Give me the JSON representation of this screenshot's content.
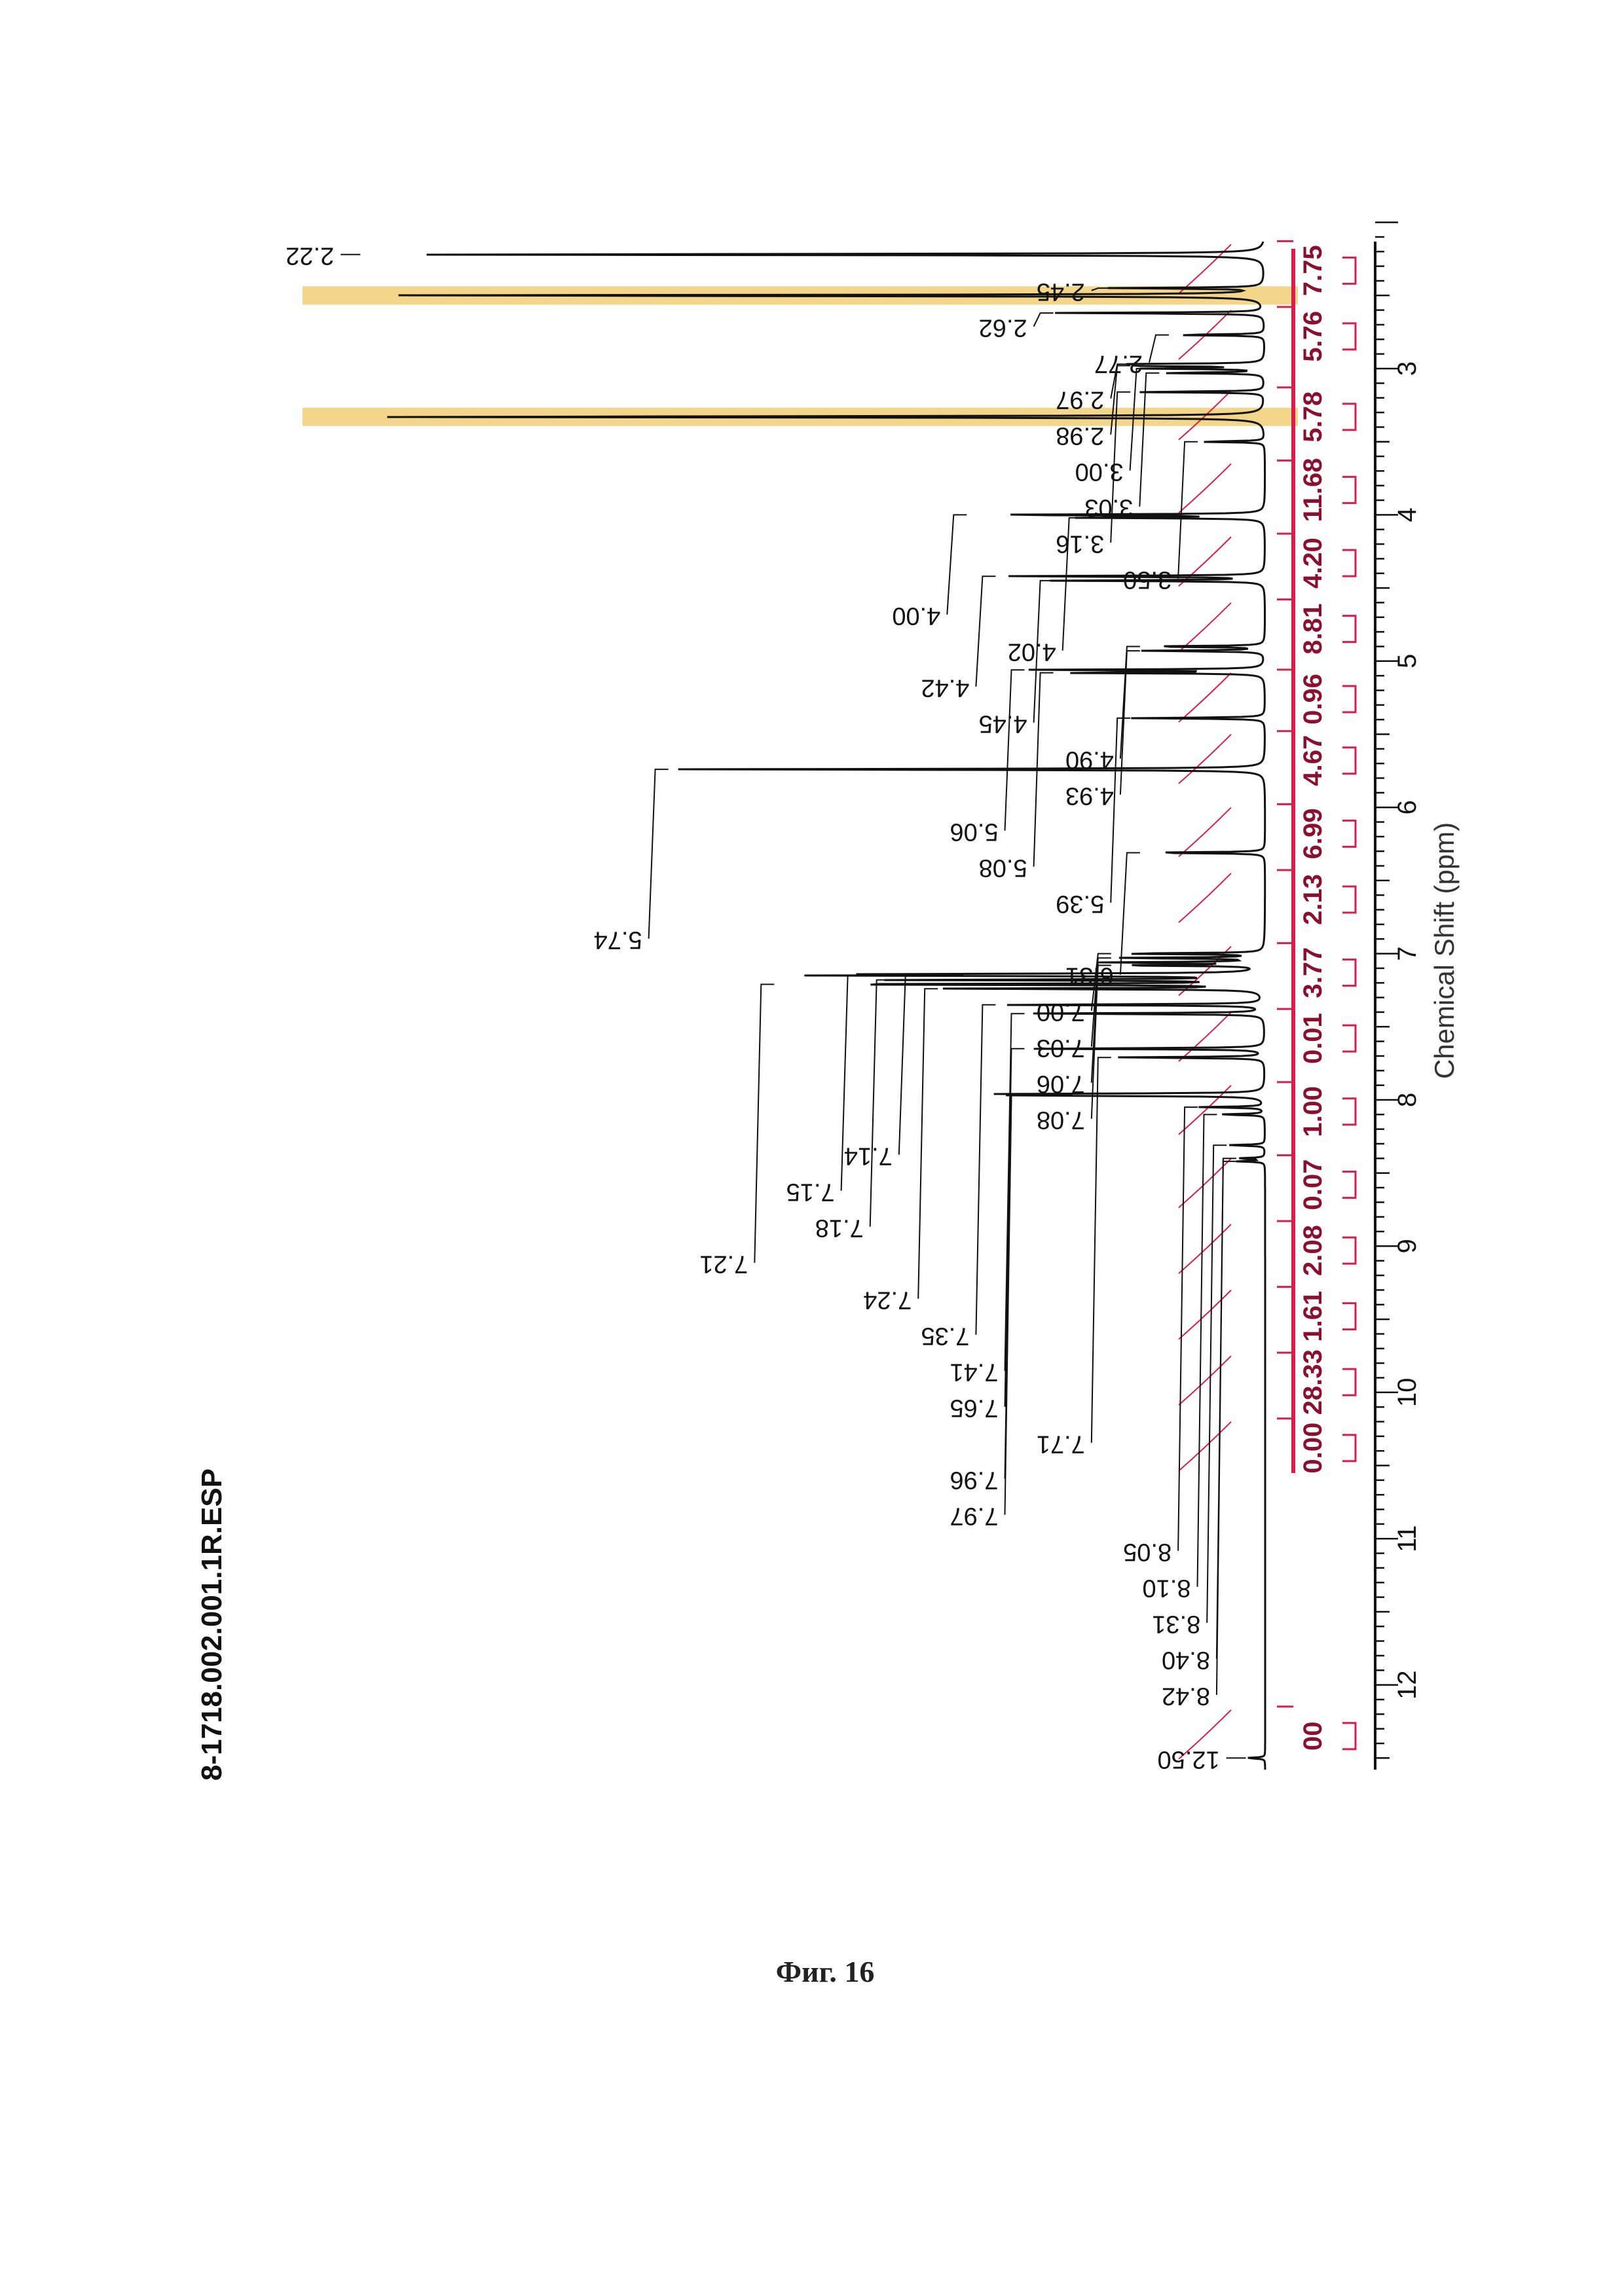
{
  "chart_data": {
    "type": "line",
    "title": "8-1718.002.001.1R.ESP",
    "xlabel": "Chemical Shift (ppm)",
    "ylabel": "",
    "xlim": [
      12.5,
      2.0
    ],
    "x_ticks": [
      "3",
      "4",
      "5",
      "6",
      "7",
      "8",
      "9",
      "10",
      "11",
      "12"
    ],
    "orientation": "rotated 90 degrees",
    "solvent_highlights_ppm": [
      2.5,
      3.33
    ],
    "peaks": [
      {
        "ppm": 2.22,
        "label": "2.22",
        "height": 0.94
      },
      {
        "ppm": 2.45,
        "label": "2.45",
        "height": 0.16
      },
      {
        "ppm": 2.5,
        "label": "",
        "height": 1.0
      },
      {
        "ppm": 2.62,
        "label": "2.62",
        "height": 0.22
      },
      {
        "ppm": 2.77,
        "label": "2.77",
        "height": 0.1
      },
      {
        "ppm": 2.97,
        "label": "2.97",
        "height": 0.14
      },
      {
        "ppm": 2.98,
        "label": "2.98",
        "height": 0.14
      },
      {
        "ppm": 3.0,
        "label": "3.00",
        "height": 0.12
      },
      {
        "ppm": 3.03,
        "label": "3.03",
        "height": 0.11
      },
      {
        "ppm": 3.16,
        "label": "3.16",
        "height": 0.14
      },
      {
        "ppm": 3.33,
        "label": "",
        "height": 1.0
      },
      {
        "ppm": 3.5,
        "label": "3.50",
        "height": 0.07
      },
      {
        "ppm": 4.0,
        "label": "4.00",
        "height": 0.31
      },
      {
        "ppm": 4.02,
        "label": "4.02",
        "height": 0.19
      },
      {
        "ppm": 4.42,
        "label": "4.42",
        "height": 0.28
      },
      {
        "ppm": 4.45,
        "label": "4.45",
        "height": 0.22
      },
      {
        "ppm": 4.9,
        "label": "4.90",
        "height": 0.13
      },
      {
        "ppm": 4.93,
        "label": "4.93",
        "height": 0.13
      },
      {
        "ppm": 5.06,
        "label": "5.06",
        "height": 0.25
      },
      {
        "ppm": 5.08,
        "label": "5.08",
        "height": 0.22
      },
      {
        "ppm": 5.39,
        "label": "5.39",
        "height": 0.14
      },
      {
        "ppm": 5.74,
        "label": "5.74",
        "height": 0.62
      },
      {
        "ppm": 6.31,
        "label": "6.31",
        "height": 0.13
      },
      {
        "ppm": 7.0,
        "label": "7.00",
        "height": 0.16
      },
      {
        "ppm": 7.03,
        "label": "7.03",
        "height": 0.16
      },
      {
        "ppm": 7.06,
        "label": "7.06",
        "height": 0.16
      },
      {
        "ppm": 7.08,
        "label": "7.08",
        "height": 0.16
      },
      {
        "ppm": 7.14,
        "label": "7.14",
        "height": 0.36
      },
      {
        "ppm": 7.15,
        "label": "7.15",
        "height": 0.42
      },
      {
        "ppm": 7.18,
        "label": "7.18",
        "height": 0.39
      },
      {
        "ppm": 7.21,
        "label": "7.21",
        "height": 0.51
      },
      {
        "ppm": 7.24,
        "label": "7.24",
        "height": 0.34
      },
      {
        "ppm": 7.35,
        "label": "7.35",
        "height": 0.28
      },
      {
        "ppm": 7.41,
        "label": "7.41",
        "height": 0.25
      },
      {
        "ppm": 7.65,
        "label": "7.65",
        "height": 0.25
      },
      {
        "ppm": 7.71,
        "label": "7.71",
        "height": 0.16
      },
      {
        "ppm": 7.96,
        "label": "7.96",
        "height": 0.25
      },
      {
        "ppm": 7.97,
        "label": "7.97",
        "height": 0.25
      },
      {
        "ppm": 8.05,
        "label": "8.05",
        "height": 0.07
      },
      {
        "ppm": 8.1,
        "label": "8.10",
        "height": 0.05
      },
      {
        "ppm": 8.31,
        "label": "8.31",
        "height": 0.04
      },
      {
        "ppm": 8.4,
        "label": "8.40",
        "height": 0.03
      },
      {
        "ppm": 8.42,
        "label": "8.42",
        "height": 0.03
      },
      {
        "ppm": 12.5,
        "label": "12.50",
        "height": 0.02
      }
    ],
    "integrals": [
      {
        "ppm": 12.35,
        "value": "00"
      },
      {
        "ppm": 10.38,
        "value": "0.00"
      },
      {
        "ppm": 9.93,
        "value": "28.33"
      },
      {
        "ppm": 9.48,
        "value": "1.61"
      },
      {
        "ppm": 9.03,
        "value": "2.08"
      },
      {
        "ppm": 8.58,
        "value": "0.07"
      },
      {
        "ppm": 8.08,
        "value": "1.00"
      },
      {
        "ppm": 7.58,
        "value": "0.01"
      },
      {
        "ppm": 7.13,
        "value": "3.77"
      },
      {
        "ppm": 6.63,
        "value": "2.13"
      },
      {
        "ppm": 6.18,
        "value": "6.99"
      },
      {
        "ppm": 5.68,
        "value": "4.67"
      },
      {
        "ppm": 5.26,
        "value": "0.96"
      },
      {
        "ppm": 4.78,
        "value": "8.81"
      },
      {
        "ppm": 4.33,
        "value": "4.20"
      },
      {
        "ppm": 3.83,
        "value": "11.68"
      },
      {
        "ppm": 3.33,
        "value": "5.78"
      },
      {
        "ppm": 2.78,
        "value": "5.76"
      },
      {
        "ppm": 2.33,
        "value": "7.75"
      }
    ],
    "colors": {
      "spectrum": "#111111",
      "integral": "#d81e4a",
      "highlight": "#f3d68a"
    }
  },
  "caption": "Фиг. 16"
}
